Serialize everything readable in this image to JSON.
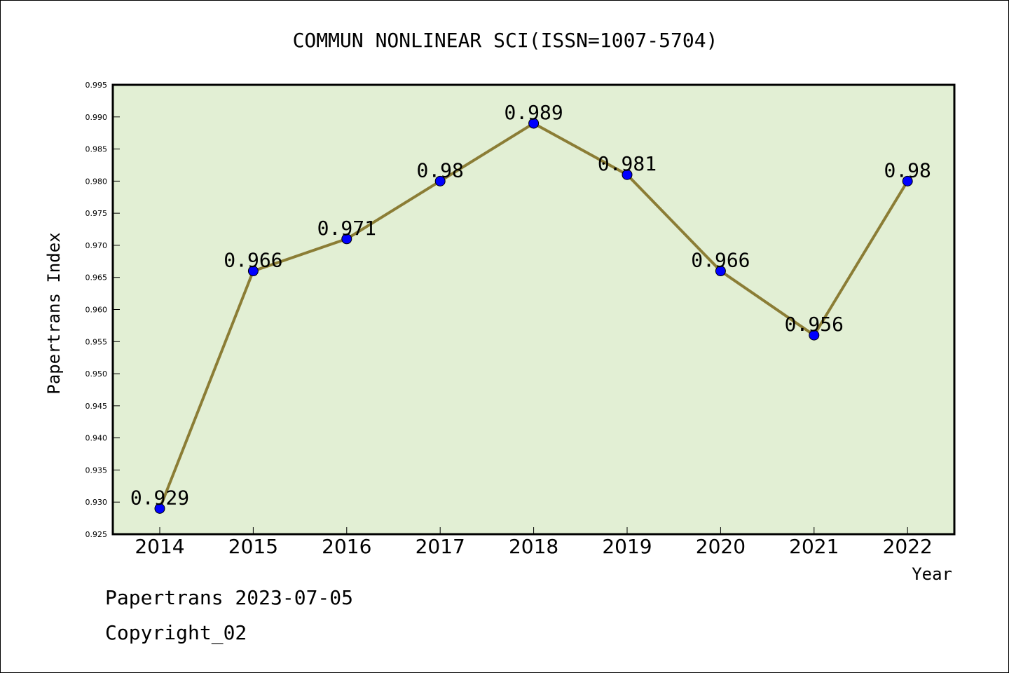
{
  "chart_data": {
    "type": "line",
    "title": "COMMUN NONLINEAR SCI(ISSN=1007-5704)",
    "xlabel": "Year",
    "ylabel": "Papertrans Index",
    "categories": [
      "2014",
      "2015",
      "2016",
      "2017",
      "2018",
      "2019",
      "2020",
      "2021",
      "2022"
    ],
    "values": [
      0.929,
      0.966,
      0.971,
      0.98,
      0.989,
      0.981,
      0.966,
      0.956,
      0.98
    ],
    "data_labels": [
      "0.929",
      "0.966",
      "0.971",
      "0.98",
      "0.989",
      "0.981",
      "0.966",
      "0.956",
      "0.98"
    ],
    "ylim": [
      0.925,
      0.995
    ],
    "yticks": [
      "0.925",
      "0.930",
      "0.935",
      "0.940",
      "0.945",
      "0.950",
      "0.955",
      "0.960",
      "0.965",
      "0.970",
      "0.975",
      "0.980",
      "0.985",
      "0.990",
      "0.995"
    ],
    "grid": false,
    "colors": {
      "plot_background": "#e2efd4",
      "line": "#8b7d35",
      "marker": "#0000ff"
    }
  },
  "footer": {
    "line1": "Papertrans 2023-07-05",
    "line2": "Copyright_02"
  }
}
